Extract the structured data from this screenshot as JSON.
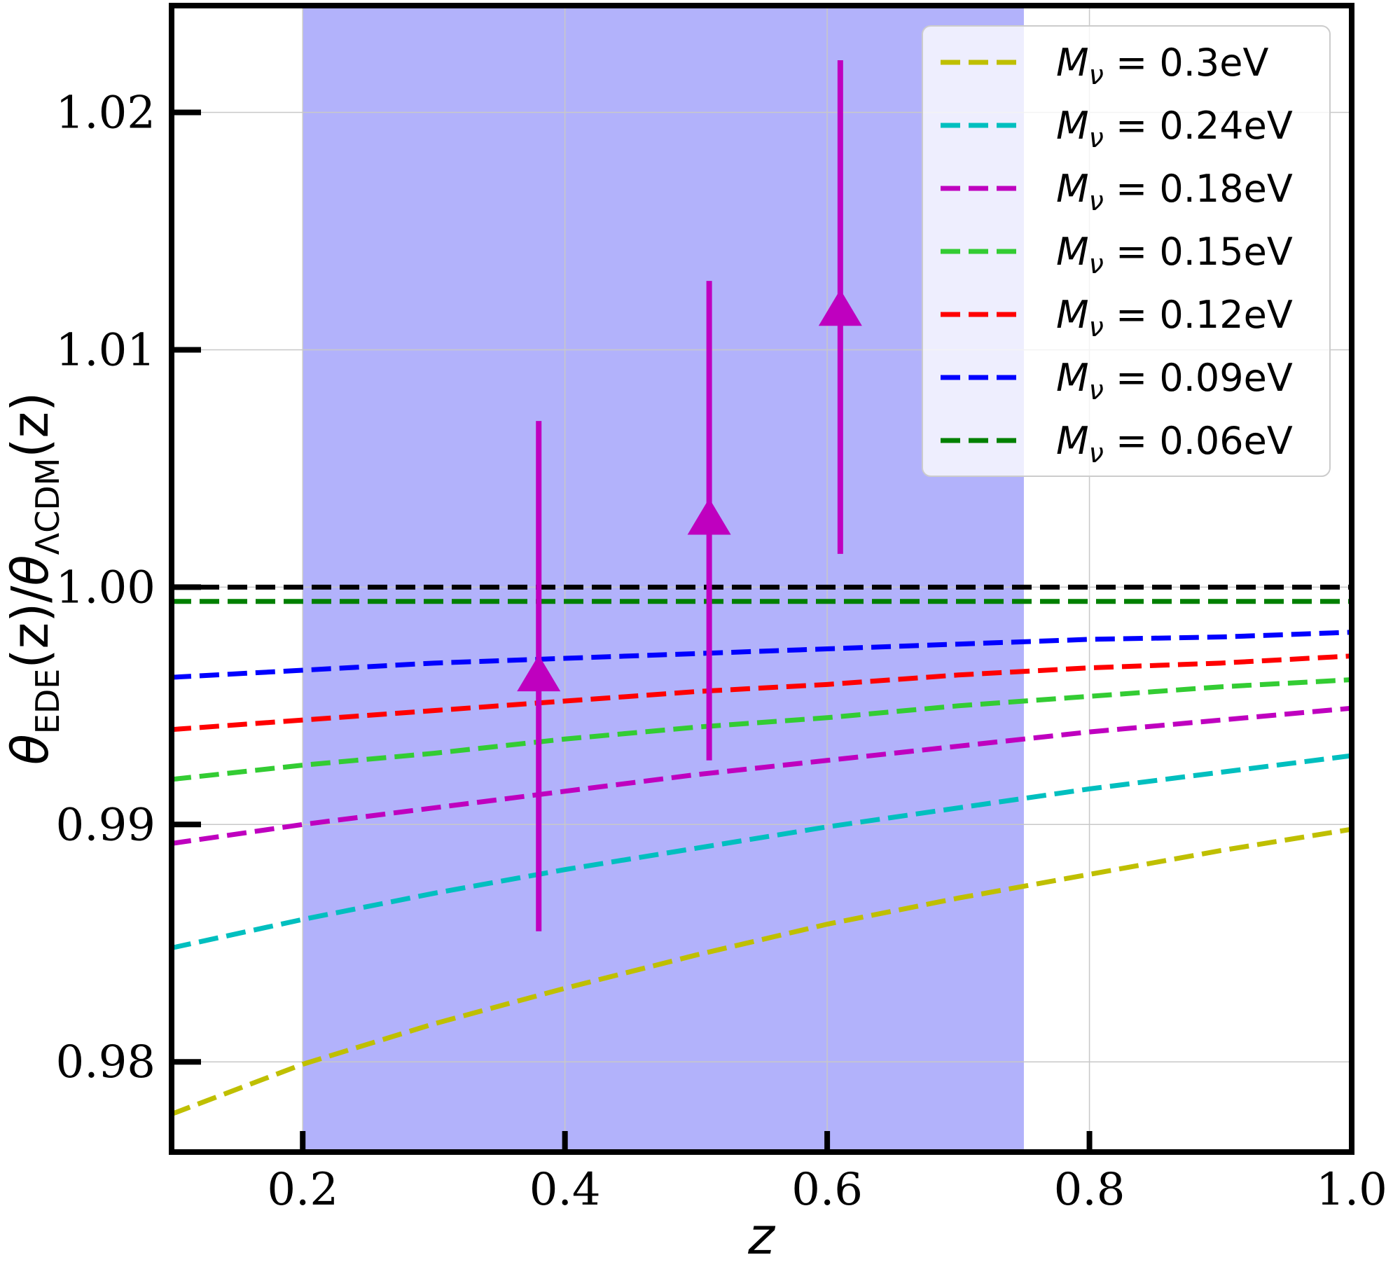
{
  "chart_data": {
    "type": "line",
    "xlabel": "z",
    "ylabel": {
      "symbol": "θ",
      "sub1": "EDE",
      "mid": "(z)/",
      "sub2": "ΛCDM",
      "end": "(z)"
    },
    "xlim": [
      0.1,
      1.0
    ],
    "ylim": [
      0.9762,
      1.0245
    ],
    "xticks": [
      0.2,
      0.4,
      0.6,
      0.8,
      1.0
    ],
    "xtick_labels": [
      "0.2",
      "0.4",
      "0.6",
      "0.8",
      "1.0"
    ],
    "yticks": [
      0.98,
      0.99,
      1.0,
      1.01,
      1.02
    ],
    "ytick_labels": [
      "0.98",
      "0.99",
      "1.00",
      "1.01",
      "1.02"
    ],
    "grid": true,
    "legend_position": "top-right",
    "shaded_band": {
      "x": [
        0.2,
        0.75
      ],
      "color": "#b2b2fb"
    },
    "reference_line": {
      "y": 1.0,
      "color": "#000000",
      "style": "dashed"
    },
    "x": [
      0.1,
      0.2,
      0.3,
      0.4,
      0.5,
      0.6,
      0.7,
      0.8,
      0.9,
      1.0
    ],
    "series": [
      {
        "name": "0.3eV",
        "color": "#bfbf00",
        "values": [
          0.9778,
          0.9799,
          0.9816,
          0.9831,
          0.9845,
          0.9858,
          0.9869,
          0.9879,
          0.9889,
          0.9898
        ]
      },
      {
        "name": "0.24eV",
        "color": "#00bfbf",
        "values": [
          0.9848,
          0.986,
          0.9871,
          0.9881,
          0.989,
          0.9899,
          0.9907,
          0.9915,
          0.9922,
          0.9929
        ]
      },
      {
        "name": "0.18eV",
        "color": "#bf00bf",
        "values": [
          0.9892,
          0.99,
          0.9907,
          0.9914,
          0.9921,
          0.9927,
          0.9933,
          0.9939,
          0.9944,
          0.9949
        ]
      },
      {
        "name": "0.15eV",
        "color": "#33cc33",
        "values": [
          0.9919,
          0.9925,
          0.993,
          0.9936,
          0.9941,
          0.9945,
          0.995,
          0.9954,
          0.9958,
          0.9961
        ]
      },
      {
        "name": "0.12eV",
        "color": "#ff0000",
        "values": [
          0.994,
          0.9944,
          0.9948,
          0.9952,
          0.9956,
          0.9959,
          0.9963,
          0.9966,
          0.9968,
          0.9971
        ]
      },
      {
        "name": "0.09eV",
        "color": "#0000ff",
        "values": [
          0.9962,
          0.9965,
          0.9968,
          0.997,
          0.9972,
          0.9974,
          0.9976,
          0.9978,
          0.9979,
          0.9981
        ]
      },
      {
        "name": "0.06eV",
        "color": "#008000",
        "values": [
          0.9994,
          0.9994,
          0.9994,
          0.9994,
          0.9994,
          0.9994,
          0.9994,
          0.9994,
          0.9994,
          0.9994
        ]
      }
    ],
    "legend_prefix": "M",
    "legend_sub": "ν",
    "legend_eq": " = ",
    "data_points": {
      "color": "#bf00bf",
      "marker": "triangle",
      "points": [
        {
          "x": 0.38,
          "y": 0.9963,
          "ylow": 0.9855,
          "yhigh": 1.007
        },
        {
          "x": 0.51,
          "y": 1.0029,
          "ylow": 0.9927,
          "yhigh": 1.0129
        },
        {
          "x": 0.61,
          "y": 1.0117,
          "ylow": 1.0014,
          "yhigh": 1.0222
        }
      ]
    }
  }
}
